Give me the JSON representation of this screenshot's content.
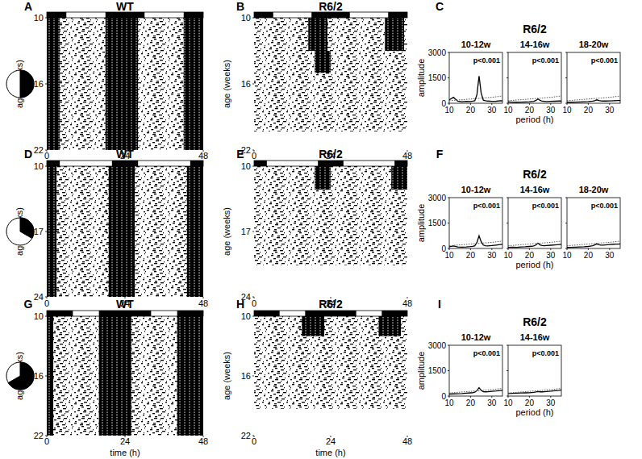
{
  "chart_data": [
    {
      "type": "actogram",
      "panel": "A",
      "title": "WT",
      "y_label": "age (weeks)",
      "xlim": [
        0,
        48
      ],
      "xticks": [
        0,
        24,
        48
      ],
      "ylim": [
        10,
        22
      ],
      "yticks": [
        10,
        16,
        22
      ],
      "dark": [
        [
          0,
          6
        ],
        [
          18,
          30
        ],
        [
          42,
          48
        ]
      ],
      "sparse": [
        [
          0,
          48,
          10,
          22
        ]
      ],
      "dense": [
        [
          18,
          28,
          10,
          22
        ],
        [
          42,
          48,
          10,
          22
        ],
        [
          0,
          4,
          10,
          22
        ]
      ]
    },
    {
      "type": "actogram",
      "panel": "B",
      "title": "R6/2",
      "y_label": "age (weeks)",
      "xlim": [
        0,
        48
      ],
      "xticks": [
        0,
        24,
        48
      ],
      "ylim": [
        10,
        22
      ],
      "yticks": [
        10,
        16,
        22
      ],
      "dark": [
        [
          0,
          6
        ],
        [
          18,
          30
        ],
        [
          42,
          48
        ]
      ],
      "sparse": [
        [
          0,
          48,
          10,
          20.3
        ]
      ],
      "dense": [
        [
          17,
          23,
          10,
          13
        ],
        [
          41,
          47,
          10,
          13
        ],
        [
          19,
          24,
          13,
          15
        ]
      ]
    },
    {
      "type": "line",
      "panel": "C",
      "title": "R6/2",
      "y_label": "amplitude",
      "x_label": "period (h)",
      "xlim": [
        10,
        35
      ],
      "xticks": [
        10,
        20,
        30
      ],
      "ylim": [
        0,
        3000
      ],
      "yticks": [
        0,
        1500,
        3000
      ],
      "panels": [
        {
          "title": "10-12w",
          "annotation": "p<0.001",
          "x": [
            10,
            12,
            14,
            16,
            18,
            20,
            21,
            22,
            23,
            24,
            25,
            26,
            27,
            28,
            30,
            32,
            34,
            35
          ],
          "series": [
            {
              "values": [
                200,
                350,
                120,
                90,
                110,
                100,
                120,
                150,
                500,
                1600,
                600,
                180,
                150,
                130,
                110,
                120,
                150,
                140
              ],
              "color": "#000000",
              "line_style": "solid"
            },
            {
              "values": [
                150,
                170,
                190,
                210,
                230,
                250,
                260,
                270,
                280,
                290,
                300,
                310,
                320,
                330,
                350,
                380,
                410,
                420
              ],
              "color": "#555555",
              "line_style": "dotted"
            }
          ]
        },
        {
          "title": "14-16w",
          "annotation": "p<0.001",
          "x": [
            10,
            12,
            14,
            16,
            18,
            20,
            21,
            22,
            23,
            24,
            25,
            26,
            27,
            28,
            30,
            32,
            34,
            35
          ],
          "series": [
            {
              "values": [
                80,
                70,
                60,
                70,
                80,
                90,
                100,
                110,
                160,
                260,
                170,
                120,
                110,
                100,
                110,
                120,
                130,
                130
              ],
              "color": "#000000",
              "line_style": "solid"
            },
            {
              "values": [
                150,
                170,
                190,
                210,
                230,
                250,
                260,
                270,
                280,
                290,
                300,
                310,
                320,
                330,
                350,
                380,
                410,
                420
              ],
              "color": "#555555",
              "line_style": "dotted"
            }
          ]
        },
        {
          "title": "18-20w",
          "annotation": "p<0.001",
          "x": [
            10,
            12,
            14,
            16,
            18,
            20,
            21,
            22,
            23,
            24,
            25,
            26,
            27,
            28,
            30,
            32,
            34,
            35
          ],
          "series": [
            {
              "values": [
                60,
                60,
                70,
                80,
                90,
                100,
                110,
                120,
                150,
                200,
                160,
                140,
                130,
                130,
                140,
                150,
                160,
                160
              ],
              "color": "#000000",
              "line_style": "solid"
            },
            {
              "values": [
                150,
                170,
                190,
                210,
                230,
                250,
                260,
                270,
                280,
                290,
                300,
                310,
                320,
                330,
                350,
                380,
                410,
                420
              ],
              "color": "#555555",
              "line_style": "dotted"
            }
          ]
        }
      ]
    },
    {
      "type": "actogram",
      "panel": "D",
      "title": "WT",
      "y_label": "age (weeks)",
      "xlim": [
        0,
        48
      ],
      "xticks": [
        0,
        24,
        48
      ],
      "ylim": [
        10,
        24
      ],
      "yticks": [
        10,
        17,
        24
      ],
      "dark": [
        [
          0,
          4
        ],
        [
          20,
          28
        ],
        [
          44,
          48
        ]
      ],
      "sparse": [
        [
          0,
          48,
          10,
          24
        ]
      ],
      "dense": [
        [
          19,
          27,
          10,
          24
        ],
        [
          43,
          48,
          10,
          24
        ],
        [
          0,
          3,
          10,
          24
        ]
      ]
    },
    {
      "type": "actogram",
      "panel": "E",
      "title": "R6/2",
      "y_label": "age (weeks)",
      "xlim": [
        0,
        48
      ],
      "xticks": [
        0,
        24,
        48
      ],
      "ylim": [
        10,
        24
      ],
      "yticks": [
        10,
        17,
        24
      ],
      "dark": [
        [
          0,
          4
        ],
        [
          20,
          28
        ],
        [
          44,
          48
        ]
      ],
      "sparse": [
        [
          0,
          48,
          10,
          20.6
        ]
      ],
      "dense": [
        [
          19,
          24,
          10,
          12.5
        ],
        [
          43,
          48,
          10,
          12.5
        ]
      ]
    },
    {
      "type": "line",
      "panel": "F",
      "title": "R6/2",
      "y_label": "amplitude",
      "x_label": "period (h)",
      "xlim": [
        10,
        35
      ],
      "xticks": [
        10,
        20,
        30
      ],
      "ylim": [
        0,
        3000
      ],
      "yticks": [
        0,
        1500,
        3000
      ],
      "panels": [
        {
          "title": "10-12w",
          "annotation": "p<0.001",
          "x": [
            10,
            12,
            14,
            16,
            18,
            20,
            21,
            22,
            23,
            24,
            25,
            26,
            27,
            28,
            30,
            32,
            34,
            35
          ],
          "series": [
            {
              "values": [
                100,
                150,
                90,
                80,
                90,
                110,
                130,
                160,
                350,
                750,
                400,
                200,
                160,
                150,
                170,
                200,
                230,
                240
              ],
              "color": "#000000",
              "line_style": "solid"
            },
            {
              "values": [
                160,
                180,
                200,
                220,
                240,
                260,
                270,
                280,
                290,
                300,
                310,
                320,
                330,
                340,
                360,
                390,
                420,
                430
              ],
              "color": "#555555",
              "line_style": "dotted"
            }
          ]
        },
        {
          "title": "14-16w",
          "annotation": "p<0.001",
          "x": [
            10,
            12,
            14,
            16,
            18,
            20,
            21,
            22,
            23,
            24,
            25,
            26,
            27,
            28,
            30,
            32,
            34,
            35
          ],
          "series": [
            {
              "values": [
                70,
                80,
                70,
                90,
                100,
                120,
                130,
                150,
                200,
                320,
                210,
                170,
                160,
                170,
                190,
                210,
                230,
                240
              ],
              "color": "#000000",
              "line_style": "solid"
            },
            {
              "values": [
                160,
                180,
                200,
                220,
                240,
                260,
                270,
                280,
                290,
                300,
                310,
                320,
                330,
                340,
                360,
                390,
                420,
                430
              ],
              "color": "#555555",
              "line_style": "dotted"
            }
          ]
        },
        {
          "title": "18-20w",
          "annotation": "p<0.001",
          "x": [
            10,
            12,
            14,
            16,
            18,
            20,
            21,
            22,
            23,
            24,
            25,
            26,
            27,
            28,
            30,
            32,
            34,
            35
          ],
          "series": [
            {
              "values": [
                60,
                70,
                80,
                90,
                100,
                120,
                140,
                160,
                210,
                270,
                220,
                200,
                200,
                210,
                230,
                250,
                260,
                270
              ],
              "color": "#000000",
              "line_style": "solid"
            },
            {
              "values": [
                160,
                180,
                200,
                220,
                240,
                260,
                270,
                280,
                290,
                300,
                310,
                320,
                330,
                340,
                360,
                390,
                420,
                430
              ],
              "color": "#555555",
              "line_style": "dotted"
            }
          ]
        }
      ]
    },
    {
      "type": "actogram",
      "panel": "G",
      "title": "WT",
      "y_label": "age (weeks)",
      "x_label": "time (h)",
      "xlim": [
        0,
        48
      ],
      "xticks": [
        0,
        24,
        48
      ],
      "ylim": [
        10,
        22
      ],
      "yticks": [
        10,
        16,
        22
      ],
      "dark": [
        [
          0,
          8
        ],
        [
          16,
          32
        ],
        [
          40,
          48
        ]
      ],
      "sparse": [
        [
          0,
          48,
          10,
          22
        ]
      ],
      "dense": [
        [
          16,
          26,
          10,
          22
        ],
        [
          40,
          48,
          10,
          22
        ],
        [
          0,
          2,
          10,
          22
        ]
      ]
    },
    {
      "type": "actogram",
      "panel": "H",
      "title": "R6/2",
      "y_label": "age (weeks)",
      "x_label": "time (h)",
      "xlim": [
        0,
        48
      ],
      "xticks": [
        0,
        24,
        48
      ],
      "ylim": [
        10,
        22
      ],
      "yticks": [
        10,
        16,
        22
      ],
      "dark": [
        [
          0,
          8
        ],
        [
          16,
          32
        ],
        [
          40,
          48
        ]
      ],
      "sparse": [
        [
          0,
          48,
          10,
          19.3
        ]
      ],
      "dense": [
        [
          15,
          22,
          10,
          12
        ],
        [
          39,
          46,
          10,
          12
        ]
      ]
    },
    {
      "type": "line",
      "panel": "I",
      "title": "R6/2",
      "y_label": "amplitude",
      "x_label": "period (h)",
      "xlim": [
        10,
        35
      ],
      "xticks": [
        10,
        20,
        30
      ],
      "ylim": [
        0,
        3000
      ],
      "yticks": [
        0,
        1500,
        3000
      ],
      "panels": [
        {
          "title": "10-12w",
          "annotation": "p<0.001",
          "x": [
            10,
            12,
            14,
            16,
            18,
            20,
            21,
            22,
            23,
            24,
            25,
            26,
            27,
            28,
            30,
            32,
            34,
            35
          ],
          "series": [
            {
              "values": [
                120,
                130,
                140,
                150,
                170,
                190,
                200,
                230,
                320,
                500,
                340,
                260,
                250,
                260,
                280,
                300,
                330,
                340
              ],
              "color": "#000000",
              "line_style": "solid"
            },
            {
              "values": [
                180,
                200,
                220,
                240,
                260,
                280,
                290,
                300,
                310,
                320,
                330,
                340,
                350,
                360,
                380,
                410,
                440,
                450
              ],
              "color": "#555555",
              "line_style": "dotted"
            }
          ]
        },
        {
          "title": "14-16w",
          "annotation": "p<0.001",
          "x": [
            10,
            12,
            14,
            16,
            18,
            20,
            21,
            22,
            23,
            24,
            25,
            26,
            27,
            28,
            30,
            32,
            34,
            35
          ],
          "series": [
            {
              "values": [
                150,
                160,
                170,
                180,
                190,
                200,
                210,
                220,
                240,
                270,
                250,
                250,
                260,
                270,
                290,
                320,
                340,
                360
              ],
              "color": "#000000",
              "line_style": "solid"
            },
            {
              "values": [
                180,
                200,
                220,
                240,
                260,
                280,
                290,
                300,
                310,
                320,
                330,
                340,
                350,
                360,
                380,
                410,
                440,
                450
              ],
              "color": "#555555",
              "line_style": "dotted"
            }
          ]
        }
      ]
    }
  ]
}
